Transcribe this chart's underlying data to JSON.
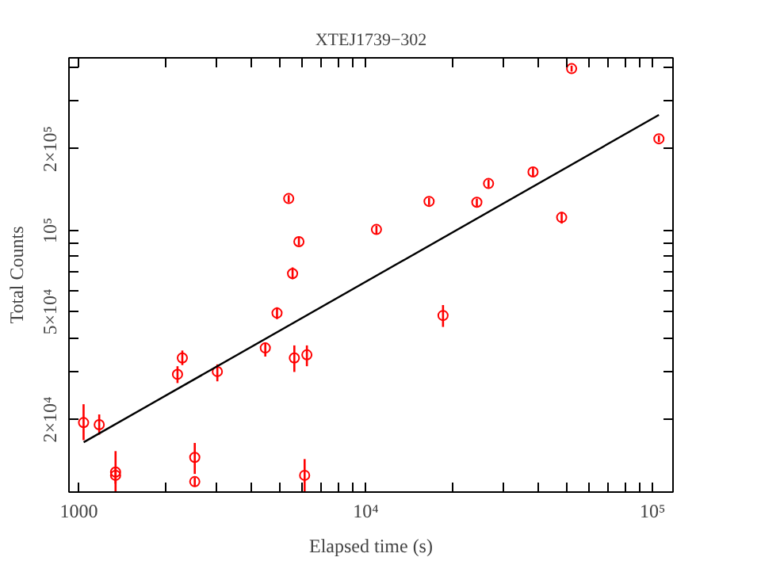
{
  "chart_data": {
    "type": "scatter",
    "title": "XTEJ1739−302",
    "xlabel": "Elapsed time (s)",
    "ylabel": "Total Counts",
    "log": "xy",
    "grid": false,
    "marker": "circle",
    "xlim": [
      924,
      117800
    ],
    "ylim": [
      10800,
      434000
    ],
    "xticks": [
      {
        "value": 1000,
        "label": "1000"
      },
      {
        "value": 2000,
        "label": null
      },
      {
        "value": 3000,
        "label": null
      },
      {
        "value": 4000,
        "label": null
      },
      {
        "value": 5000,
        "label": null
      },
      {
        "value": 6000,
        "label": null
      },
      {
        "value": 7000,
        "label": null
      },
      {
        "value": 8000,
        "label": null
      },
      {
        "value": 9000,
        "label": null
      },
      {
        "value": 10000,
        "label": "10⁴"
      },
      {
        "value": 20000,
        "label": null
      },
      {
        "value": 30000,
        "label": null
      },
      {
        "value": 40000,
        "label": null
      },
      {
        "value": 50000,
        "label": null
      },
      {
        "value": 60000,
        "label": null
      },
      {
        "value": 70000,
        "label": null
      },
      {
        "value": 80000,
        "label": null
      },
      {
        "value": 90000,
        "label": null
      },
      {
        "value": 100000,
        "label": "10⁵"
      }
    ],
    "yticks": [
      {
        "value": 20000,
        "label": "2×10⁴"
      },
      {
        "value": 30000,
        "label": null
      },
      {
        "value": 40000,
        "label": null
      },
      {
        "value": 50000,
        "label": "5×10⁴"
      },
      {
        "value": 60000,
        "label": null
      },
      {
        "value": 70000,
        "label": null
      },
      {
        "value": 80000,
        "label": null
      },
      {
        "value": 90000,
        "label": null
      },
      {
        "value": 100000,
        "label": "10⁵"
      },
      {
        "value": 200000,
        "label": "2×10⁵"
      },
      {
        "value": 300000,
        "label": null
      },
      {
        "value": 400000,
        "label": null
      }
    ],
    "series": [
      {
        "color": "#ff0000",
        "x": [
          1039,
          1178,
          1343,
          1343,
          2208,
          2295,
          2536,
          2536,
          3040,
          4467,
          4908,
          5390,
          5560,
          5640,
          5850,
          6125,
          6237,
          10900,
          16630,
          18600,
          24400,
          26800,
          38300,
          48200,
          52200,
          105200
        ],
        "values": [
          19500,
          19160,
          12800,
          12450,
          29400,
          33800,
          14500,
          11800,
          30100,
          36800,
          49500,
          131100,
          69300,
          33800,
          90900,
          12450,
          34700,
          100800,
          128000,
          48500,
          127000,
          149000,
          164500,
          111700,
          396000,
          218000
        ],
        "errors": [
          [
            16800,
            22800
          ],
          [
            17600,
            20900
          ],
          [
            10800,
            15300
          ],
          [
            11600,
            13400
          ],
          [
            27300,
            31500
          ],
          [
            31800,
            36000
          ],
          [
            12600,
            16400
          ],
          [
            11300,
            12200
          ],
          [
            27700,
            32000
          ],
          [
            34200,
            38500
          ],
          [
            47000,
            52000
          ],
          [
            127000,
            135000
          ],
          [
            66000,
            73000
          ],
          [
            30000,
            37600
          ],
          [
            88000,
            94000
          ],
          [
            10800,
            14300
          ],
          [
            31500,
            37600
          ],
          [
            97000,
            104000
          ],
          [
            124000,
            132000
          ],
          [
            44000,
            53000
          ],
          [
            123000,
            131000
          ],
          [
            144000,
            154000
          ],
          [
            159000,
            170000
          ],
          [
            106000,
            117000
          ],
          [
            386000,
            406000
          ],
          [
            212000,
            224000
          ]
        ]
      },
      {
        "type": "line",
        "marker": "none",
        "color": "#000000",
        "x": [
          1040,
          105200
        ],
        "values": [
          16500,
          267000
        ]
      }
    ]
  }
}
